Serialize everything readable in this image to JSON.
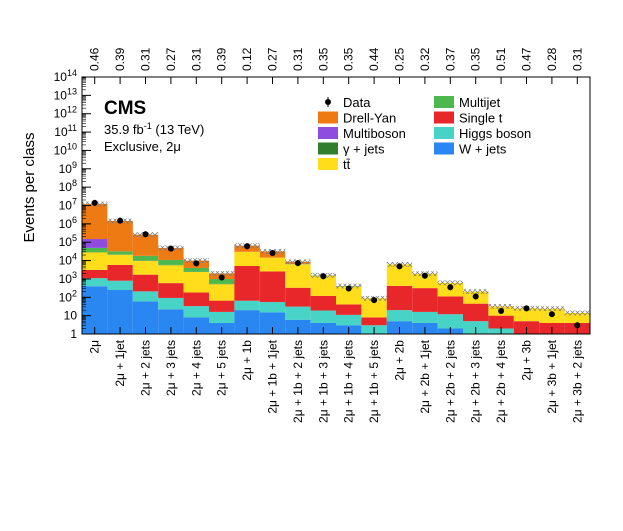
{
  "chart_data": {
    "type": "bar",
    "stacked": true,
    "log_y": true,
    "ylabel": "Events per class",
    "ylim": [
      1,
      100000000000000.0
    ],
    "y_ticks": [
      "1",
      "10",
      "10^2",
      "10^3",
      "10^4",
      "10^5",
      "10^6",
      "10^7",
      "10^8",
      "10^9",
      "10^10",
      "10^11",
      "10^12",
      "10^13",
      "10^14"
    ],
    "experiment": "CMS",
    "lumi_value": "35.9 fb",
    "lumi_exp": "-1",
    "lumi_energy": " (13 TeV)",
    "selection": "Exclusive, 2μ",
    "categories": [
      "2μ",
      "2μ + 1jet",
      "2μ + 2 jets",
      "2μ + 3 jets",
      "2μ + 4 jets",
      "2μ + 5 jets",
      "2μ + 1b",
      "2μ + 1b + 1jet",
      "2μ + 1b + 2 jets",
      "2μ + 1b + 3 jets",
      "2μ + 1b + 4 jets",
      "2μ + 1b + 5 jets",
      "2μ + 2b",
      "2μ + 2b + 1jet",
      "2μ + 2b + 2 jets",
      "2μ + 2b + 3 jets",
      "2μ + 2b + 4 jets",
      "2μ + 3b",
      "2μ + 3b + 1jet",
      "2μ + 3b + 2 jets"
    ],
    "top_labels": [
      "0.46",
      "0.39",
      "0.31",
      "0.27",
      "0.31",
      "0.39",
      "0.12",
      "0.27",
      "0.31",
      "0.35",
      "0.35",
      "0.44",
      "0.25",
      "0.32",
      "0.37",
      "0.35",
      "0.51",
      "0.47",
      "0.28",
      "0.31"
    ],
    "series": [
      {
        "name": "W + jets",
        "color": "#2a86f0",
        "values": [
          400,
          250,
          60,
          22,
          8,
          4,
          20,
          15,
          6,
          4,
          3,
          1,
          5,
          4,
          2,
          1,
          1,
          0,
          0,
          0
        ]
      },
      {
        "name": "Higgs boson",
        "color": "#47d3c6",
        "values": [
          700,
          550,
          150,
          70,
          25,
          12,
          45,
          40,
          25,
          15,
          8,
          2,
          15,
          12,
          10,
          4,
          1,
          1,
          1,
          1
        ]
      },
      {
        "name": "Single t",
        "color": "#e8272b",
        "values": [
          2000,
          5000,
          1500,
          500,
          150,
          50,
          5000,
          2500,
          300,
          100,
          30,
          5,
          400,
          300,
          100,
          40,
          8,
          4,
          3,
          3
        ]
      },
      {
        "name": "tt̄",
        "color": "#ffdd1a",
        "values": [
          25000,
          15000,
          8000,
          5000,
          2200,
          450,
          25000,
          12000,
          6000,
          1400,
          350,
          80,
          5800,
          1600,
          500,
          160,
          22,
          20,
          20,
          10
        ]
      },
      {
        "name": "γ + jets",
        "color": "#2f7f2f",
        "values": [
          1000,
          1000,
          500,
          200,
          80,
          20,
          0,
          0,
          0,
          0,
          0,
          0,
          0,
          0,
          0,
          0,
          0,
          0,
          0,
          0
        ]
      },
      {
        "name": "Multijet",
        "color": "#4db84d",
        "values": [
          20000,
          10000,
          8000,
          5000,
          1500,
          450,
          0,
          100,
          300,
          50,
          20,
          0,
          0,
          0,
          0,
          0,
          0,
          0,
          0,
          0
        ]
      },
      {
        "name": "Multiboson",
        "color": "#8f4de0",
        "values": [
          100000,
          0,
          0,
          0,
          0,
          0,
          0,
          0,
          0,
          0,
          0,
          0,
          0,
          0,
          0,
          0,
          0,
          0,
          0,
          0
        ]
      },
      {
        "name": "Drell-Yan",
        "color": "#ee7a14",
        "values": [
          12000000,
          1400000,
          240000,
          38000,
          6000,
          1000,
          35000,
          17000,
          2000,
          0,
          0,
          0,
          0,
          0,
          0,
          0,
          0,
          0,
          0,
          0
        ]
      }
    ],
    "data_points": [
      14000000,
      1500000,
      270000,
      45000,
      7000,
      1200,
      60000,
      26000,
      7300,
      1400,
      300,
      70,
      4800,
      1500,
      350,
      110,
      18,
      25,
      12,
      3
    ],
    "data_uncertainty": true,
    "legend": {
      "placement": "top-right",
      "entries": [
        {
          "label": "Data",
          "kind": "marker"
        },
        {
          "label": "Drell-Yan",
          "kind": "box",
          "color": "#ee7a14"
        },
        {
          "label": "Multiboson",
          "kind": "box",
          "color": "#8f4de0"
        },
        {
          "label": "γ + jets",
          "kind": "box",
          "color": "#2f7f2f"
        },
        {
          "label": "tt̄",
          "kind": "box",
          "color": "#ffdd1a"
        },
        {
          "label": "Multijet",
          "kind": "box",
          "color": "#4db84d"
        },
        {
          "label": "Single t",
          "kind": "box",
          "color": "#e8272b"
        },
        {
          "label": "Higgs boson",
          "kind": "box",
          "color": "#47d3c6"
        },
        {
          "label": "W + jets",
          "kind": "box",
          "color": "#2a86f0"
        }
      ]
    }
  }
}
